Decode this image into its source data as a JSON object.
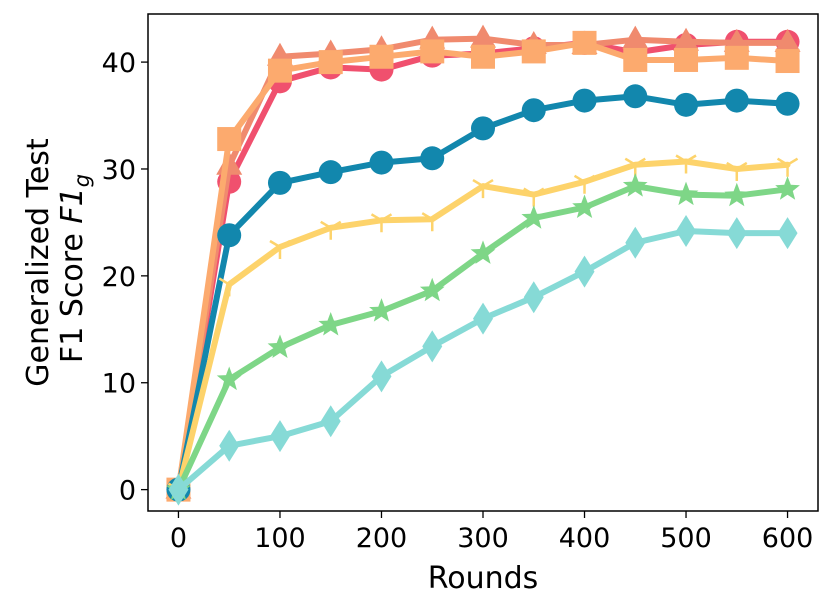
{
  "chart_data": {
    "type": "line",
    "xlabel": "Rounds",
    "ylabel_line1": "Generalized Test",
    "ylabel_line2_prefix": "F1 Score ",
    "ylabel_line2_math": "F1",
    "ylabel_line2_sub": "g",
    "xlim": [
      -30,
      630
    ],
    "ylim": [
      -2,
      44.5
    ],
    "xticks": [
      0,
      100,
      200,
      300,
      400,
      500,
      600
    ],
    "yticks": [
      0,
      10,
      20,
      30,
      40
    ],
    "grid": false,
    "x": [
      0,
      50,
      100,
      150,
      200,
      250,
      300,
      350,
      400,
      450,
      500,
      550,
      600
    ],
    "series": [
      {
        "color": "#f0506e",
        "marker": "circle",
        "values": [
          0,
          28.8,
          38.2,
          39.5,
          39.3,
          40.6,
          40.8,
          41.3,
          41.8,
          40.9,
          41.6,
          41.9,
          41.9
        ]
      },
      {
        "color": "#f08a6e",
        "marker": "triangle",
        "values": [
          0,
          30.3,
          40.5,
          40.8,
          41.2,
          42.1,
          42.2,
          41.6,
          41.6,
          42.1,
          41.9,
          41.8,
          41.8
        ]
      },
      {
        "color": "#fcaa6e",
        "marker": "square",
        "values": [
          0,
          32.8,
          39.2,
          40.0,
          40.5,
          41.0,
          40.5,
          41.0,
          41.8,
          40.2,
          40.2,
          40.4,
          40.1
        ]
      },
      {
        "color": "#1287ad",
        "marker": "circle",
        "values": [
          0,
          23.8,
          28.7,
          29.7,
          30.6,
          31.0,
          33.8,
          35.5,
          36.4,
          36.8,
          36.0,
          36.4,
          36.1
        ]
      },
      {
        "color": "#fdd36b",
        "marker": "tri",
        "values": [
          0,
          19.2,
          22.7,
          24.5,
          25.2,
          25.3,
          28.4,
          27.6,
          28.8,
          30.4,
          30.7,
          30.0,
          30.4
        ]
      },
      {
        "color": "#7ed687",
        "marker": "star",
        "values": [
          0,
          10.3,
          13.3,
          15.4,
          16.7,
          18.6,
          22.1,
          25.4,
          26.4,
          28.4,
          27.6,
          27.5,
          28.1
        ]
      },
      {
        "color": "#86dad6",
        "marker": "diamond",
        "values": [
          0,
          4.1,
          5.0,
          6.4,
          10.6,
          13.4,
          16.0,
          18.0,
          20.4,
          23.1,
          24.2,
          24.0,
          24.0
        ]
      }
    ]
  }
}
